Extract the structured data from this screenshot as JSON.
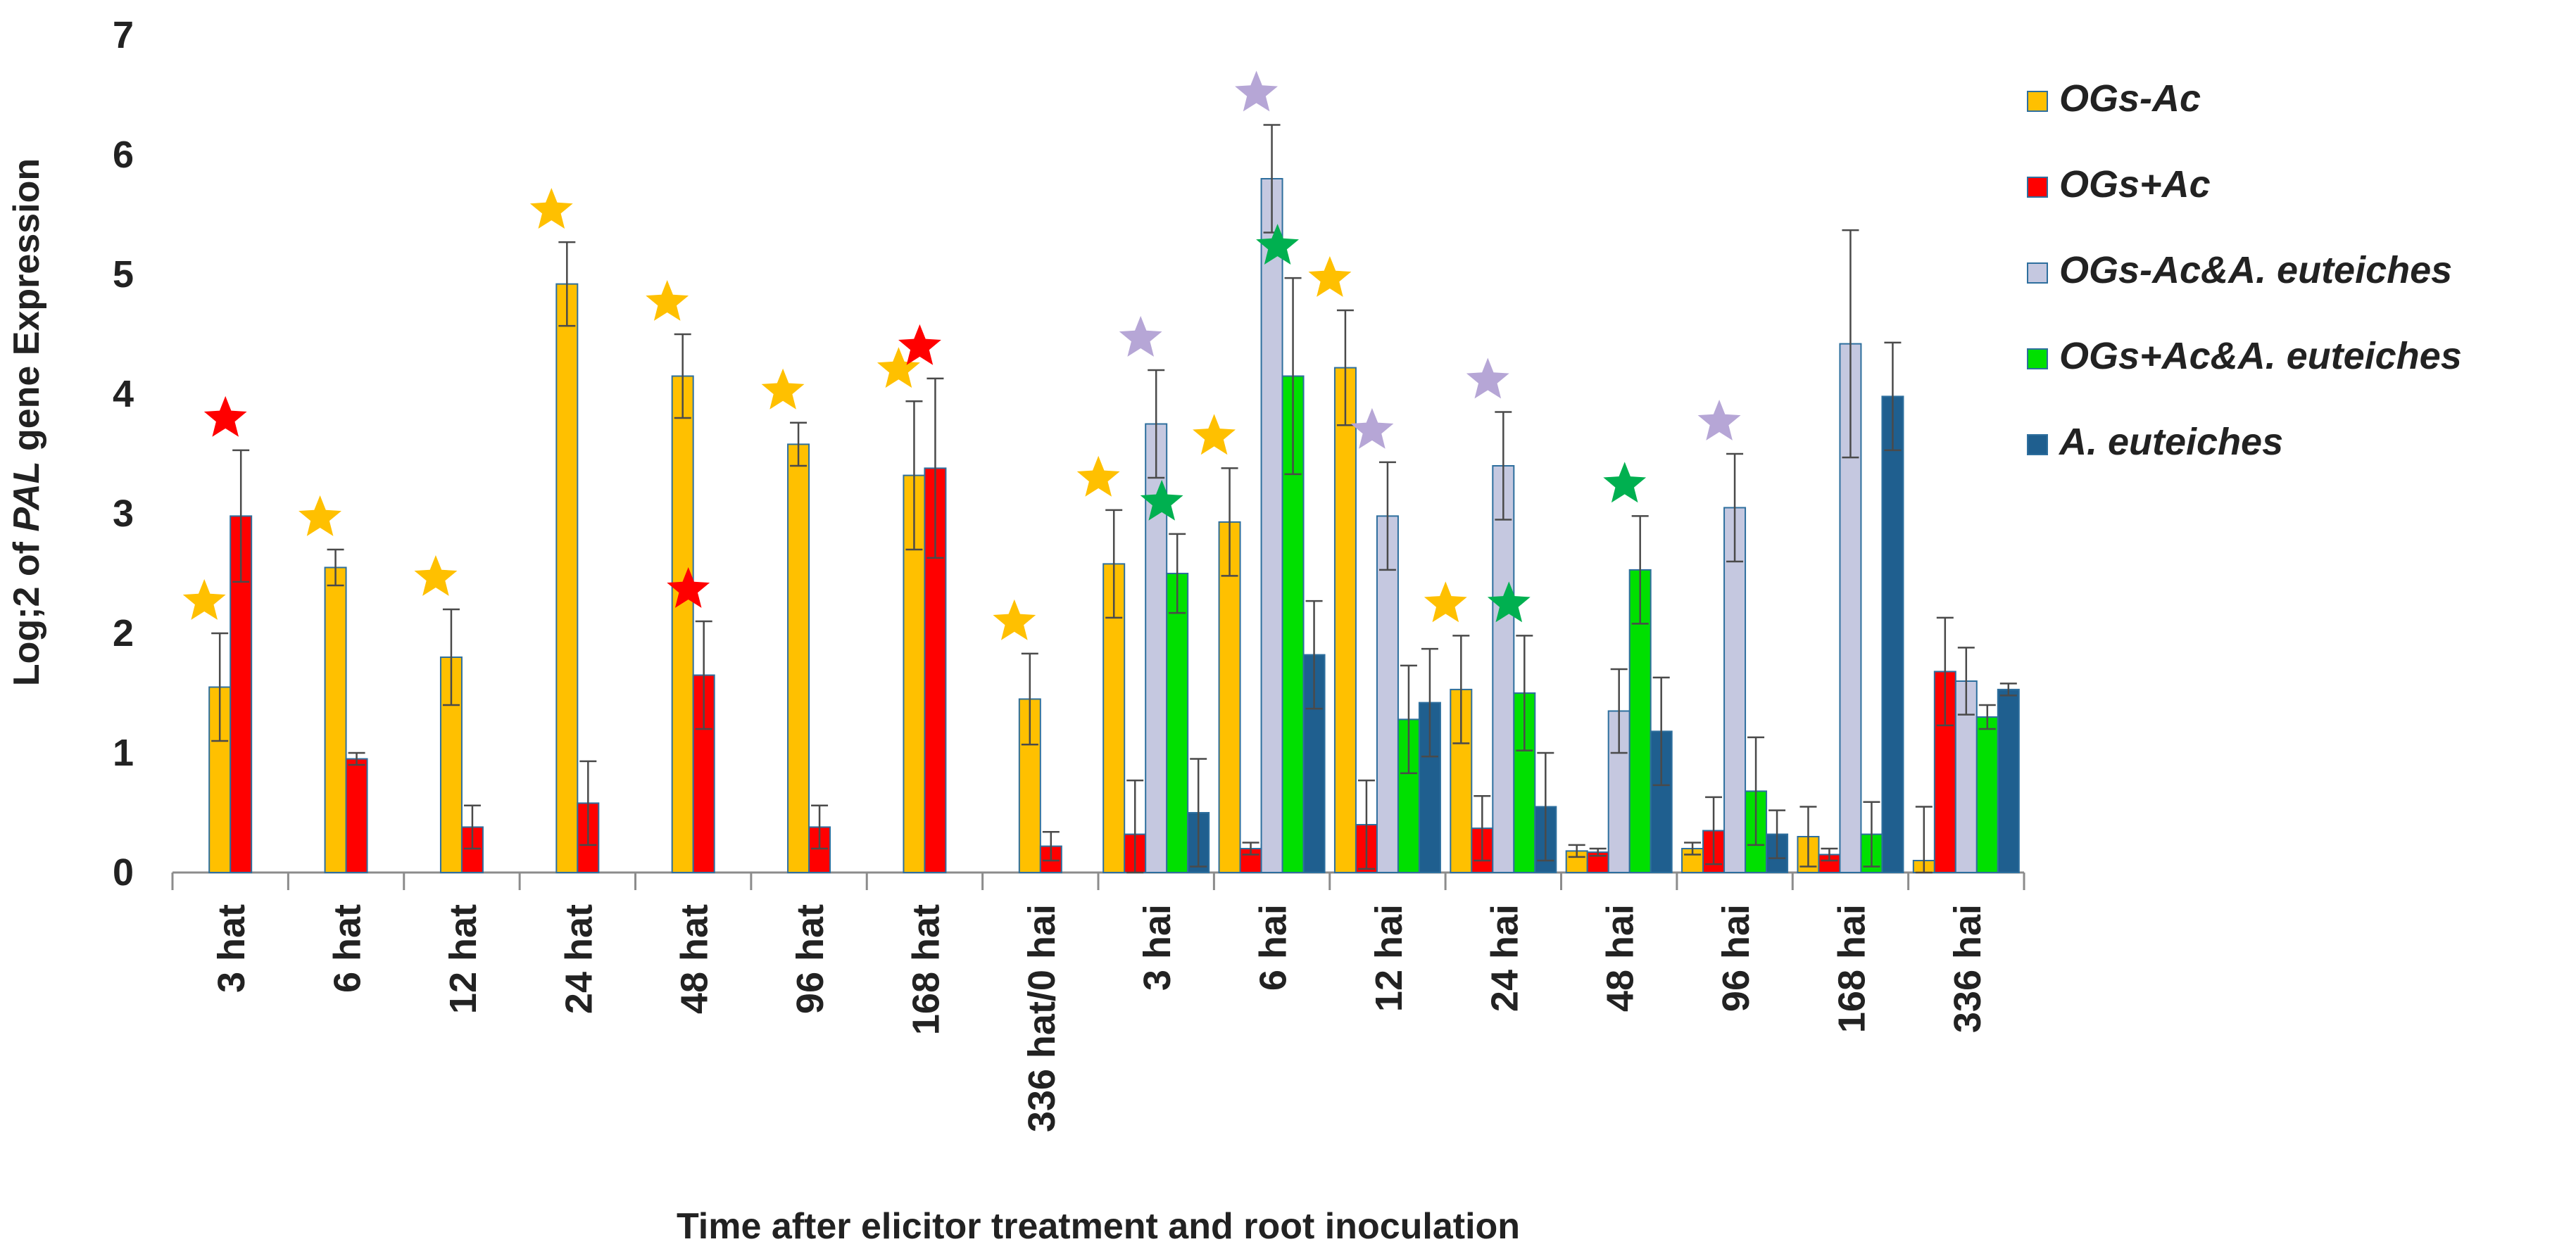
{
  "chart_data": {
    "type": "bar",
    "title": "",
    "xlabel": "Time after elicitor treatment and root inoculation",
    "ylabel_parts": [
      "Log;2 of ",
      "PAL",
      " gene Expression"
    ],
    "ylim": [
      0,
      7
    ],
    "yticks": [
      "0",
      "1",
      "2",
      "3",
      "4",
      "5",
      "6",
      "7"
    ],
    "grid": false,
    "legend_position": "top-right",
    "categories": [
      "3 hat",
      "6 hat",
      "12 hat",
      "24 hat",
      "48 hat",
      "96 hat",
      "168 hat",
      "336 hat/0 hai",
      "3 hai",
      "6 hai",
      "12 hai",
      "24 hai",
      "48 hai",
      "96 hai",
      "168 hai",
      "336 hai"
    ],
    "series": [
      {
        "name": "OGs-Ac",
        "color": "#FFC000",
        "values": [
          1.55,
          2.55,
          1.8,
          4.92,
          4.15,
          3.58,
          3.32,
          1.45,
          2.58,
          2.93,
          4.22,
          1.53,
          0.18,
          0.2,
          0.3,
          0.1
        ],
        "errors": [
          0.45,
          0.15,
          0.4,
          0.35,
          0.35,
          0.18,
          0.62,
          0.38,
          0.45,
          0.45,
          0.48,
          0.45,
          0.05,
          0.05,
          0.25,
          0.45
        ]
      },
      {
        "name": "OGs+Ac",
        "color": "#FF0000",
        "values": [
          2.98,
          0.95,
          0.38,
          0.58,
          1.65,
          0.38,
          3.38,
          0.22,
          0.32,
          0.2,
          0.4,
          0.37,
          0.17,
          0.35,
          0.15,
          1.68
        ],
        "errors": [
          0.55,
          0.05,
          0.18,
          0.35,
          0.45,
          0.18,
          0.75,
          0.12,
          0.45,
          0.05,
          0.37,
          0.27,
          0.03,
          0.28,
          0.05,
          0.45
        ]
      },
      {
        "name": "OGs-Ac&A. euteiches",
        "color": "#C5C8E0",
        "values": [
          null,
          null,
          null,
          null,
          null,
          null,
          null,
          null,
          3.75,
          5.8,
          2.98,
          3.4,
          1.35,
          3.05,
          4.42,
          1.6
        ],
        "errors": [
          null,
          null,
          null,
          null,
          null,
          null,
          null,
          null,
          0.45,
          0.45,
          0.45,
          0.45,
          0.35,
          0.45,
          0.95,
          0.28
        ]
      },
      {
        "name": "OGs+Ac&A. euteiches",
        "color": "#00E000",
        "values": [
          null,
          null,
          null,
          null,
          null,
          null,
          null,
          null,
          2.5,
          4.15,
          1.28,
          1.5,
          2.53,
          0.68,
          0.32,
          1.3
        ],
        "errors": [
          null,
          null,
          null,
          null,
          null,
          null,
          null,
          null,
          0.33,
          0.82,
          0.45,
          0.48,
          0.45,
          0.45,
          0.27,
          0.1
        ]
      },
      {
        "name": "A. euteiches",
        "color": "#1F5F8F",
        "values": [
          null,
          null,
          null,
          null,
          null,
          null,
          null,
          null,
          0.5,
          1.82,
          1.42,
          0.55,
          1.18,
          0.32,
          3.98,
          1.53
        ],
        "errors": [
          null,
          null,
          null,
          null,
          null,
          null,
          null,
          null,
          0.45,
          0.45,
          0.45,
          0.45,
          0.45,
          0.2,
          0.45,
          0.05
        ]
      }
    ],
    "significance_stars": [
      {
        "category": "3 hat",
        "series": "OGs-Ac",
        "color": "#FFC000"
      },
      {
        "category": "3 hat",
        "series": "OGs+Ac",
        "color": "#FF0000"
      },
      {
        "category": "6 hat",
        "series": "OGs-Ac",
        "color": "#FFC000"
      },
      {
        "category": "12 hat",
        "series": "OGs-Ac",
        "color": "#FFC000"
      },
      {
        "category": "24 hat",
        "series": "OGs-Ac",
        "color": "#FFC000"
      },
      {
        "category": "48 hat",
        "series": "OGs-Ac",
        "color": "#FFC000"
      },
      {
        "category": "48 hat",
        "series": "OGs+Ac",
        "color": "#FF0000"
      },
      {
        "category": "96 hat",
        "series": "OGs-Ac",
        "color": "#FFC000"
      },
      {
        "category": "168 hat",
        "series": "OGs-Ac",
        "color": "#FFC000"
      },
      {
        "category": "168 hat",
        "series": "OGs+Ac",
        "color": "#FF0000"
      },
      {
        "category": "336 hat/0 hai",
        "series": "OGs-Ac",
        "color": "#FFC000"
      },
      {
        "category": "3 hai",
        "series": "OGs-Ac",
        "color": "#FFC000"
      },
      {
        "category": "3 hai",
        "series": "OGs-Ac&A. euteiches",
        "color": "#B6A6D6"
      },
      {
        "category": "3 hai",
        "series": "OGs+Ac&A. euteiches",
        "color": "#00B050"
      },
      {
        "category": "6 hai",
        "series": "OGs-Ac",
        "color": "#FFC000"
      },
      {
        "category": "6 hai",
        "series": "OGs-Ac&A. euteiches",
        "color": "#B6A6D6"
      },
      {
        "category": "6 hai",
        "series": "OGs+Ac&A. euteiches",
        "color": "#00B050"
      },
      {
        "category": "12 hai",
        "series": "OGs-Ac",
        "color": "#FFC000"
      },
      {
        "category": "12 hai",
        "series": "OGs-Ac&A. euteiches",
        "color": "#B6A6D6"
      },
      {
        "category": "24 hai",
        "series": "OGs-Ac",
        "color": "#FFC000"
      },
      {
        "category": "24 hai",
        "series": "OGs-Ac&A. euteiches",
        "color": "#B6A6D6"
      },
      {
        "category": "24 hai",
        "series": "OGs+Ac&A. euteiches",
        "color": "#00B050"
      },
      {
        "category": "48 hai",
        "series": "OGs+Ac&A. euteiches",
        "color": "#00B050"
      },
      {
        "category": "96 hai",
        "series": "OGs-Ac&A. euteiches",
        "color": "#B6A6D6"
      }
    ]
  }
}
